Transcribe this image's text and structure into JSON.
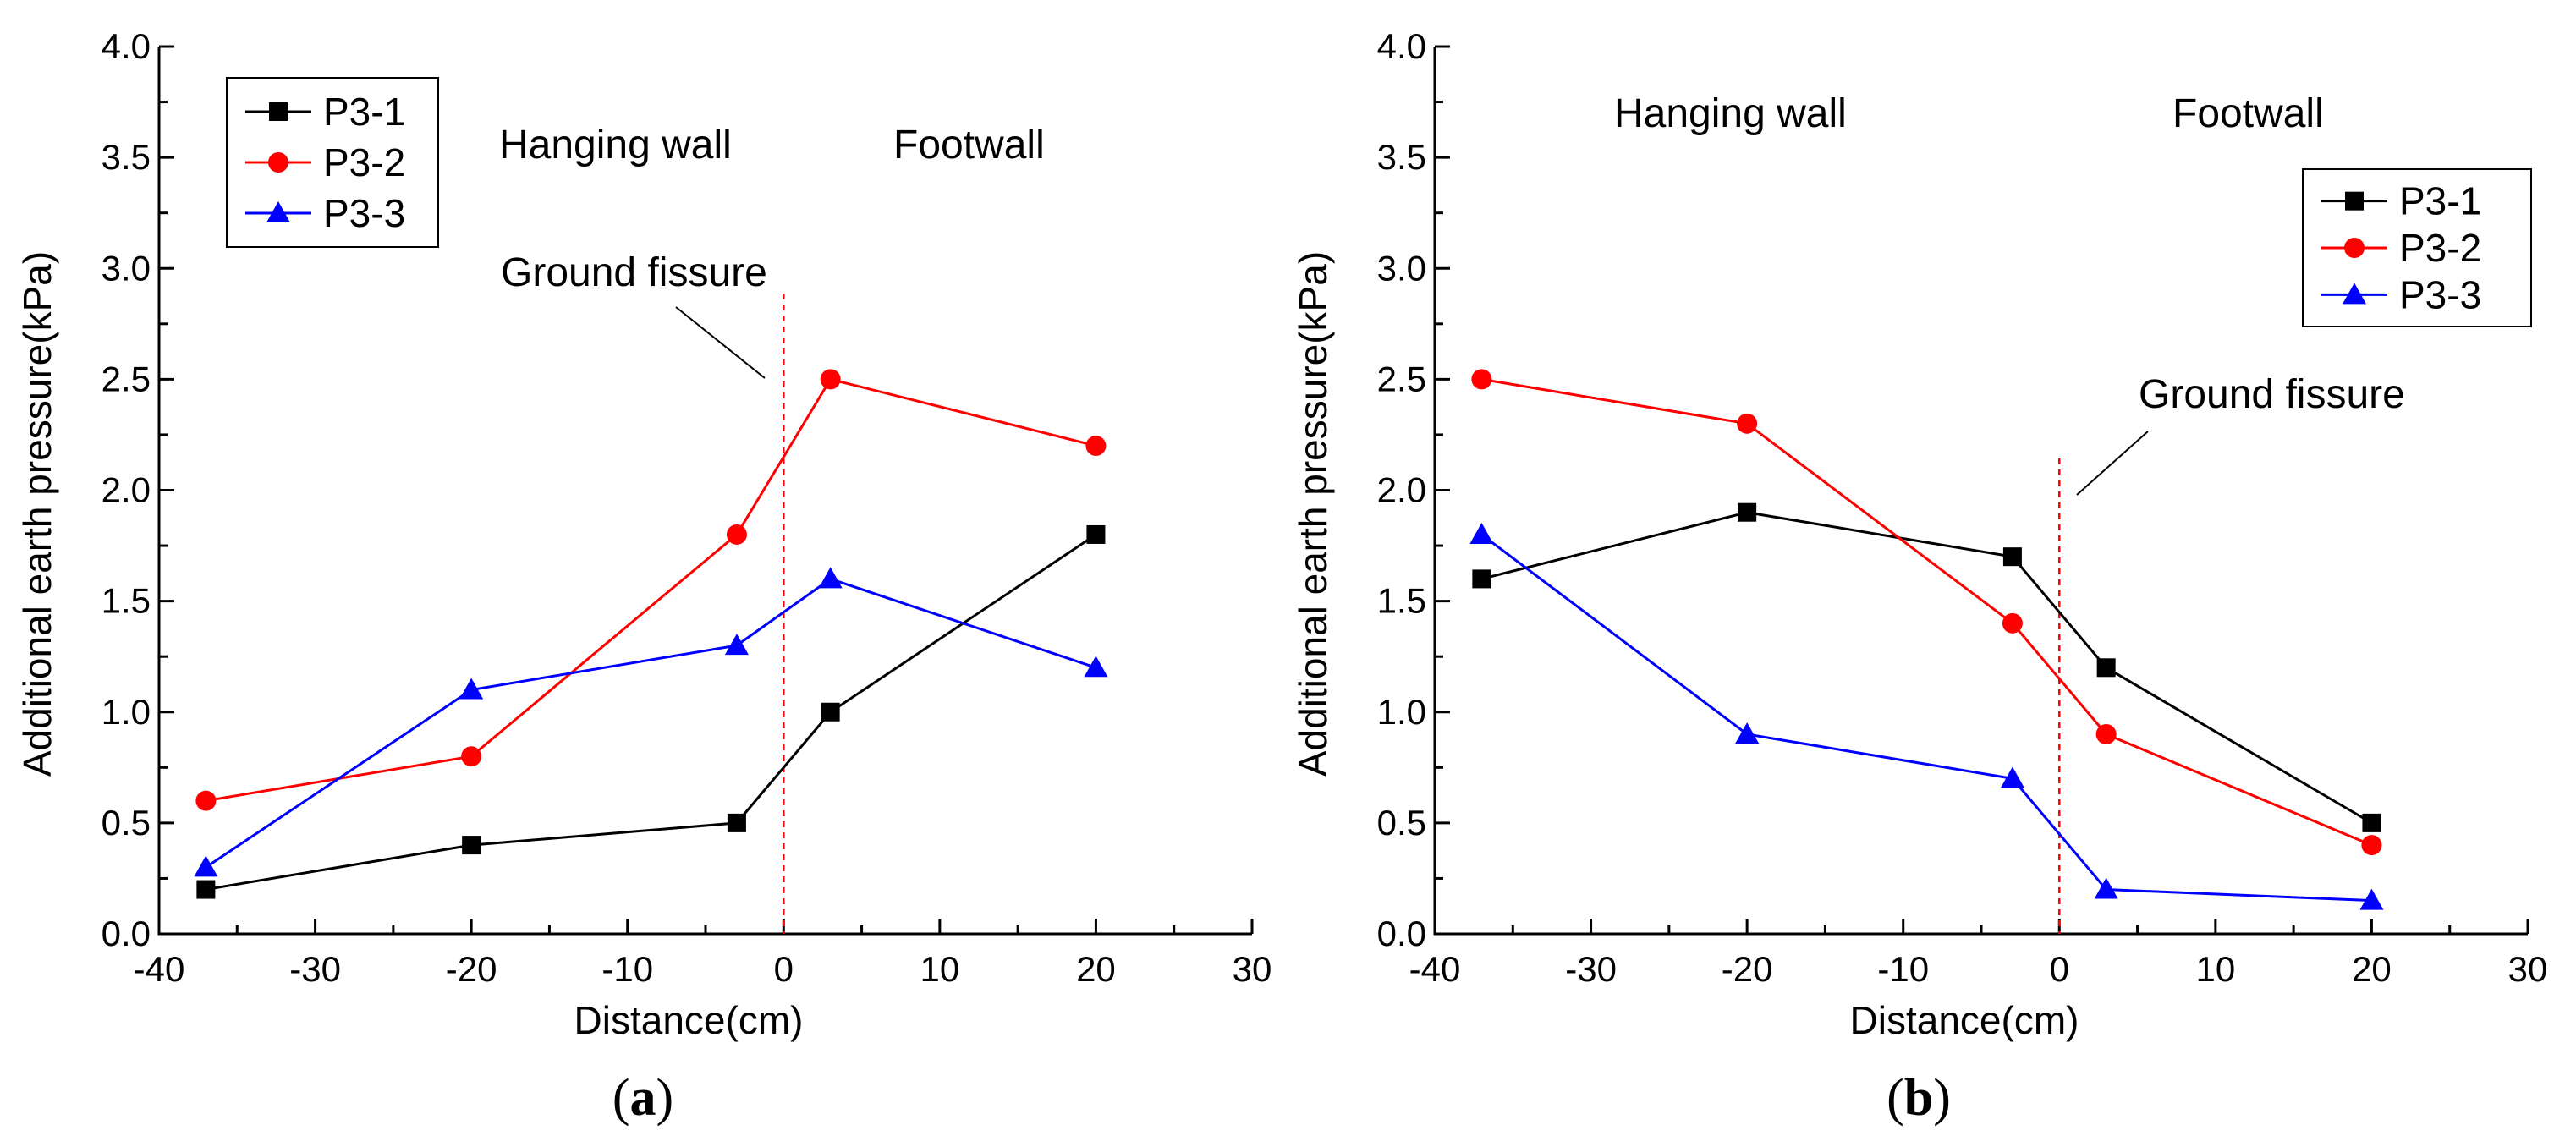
{
  "chart_data": [
    {
      "type": "line",
      "panel_label": "a",
      "xlabel": "Distance(cm)",
      "ylabel": "Additional earth pressure(kPa)",
      "xlim": [
        -40,
        30
      ],
      "ylim": [
        0,
        4.0
      ],
      "xticks": [
        "-40",
        "-30",
        "-20",
        "-10",
        "0",
        "10",
        "20",
        "30"
      ],
      "yticks": [
        "0.0",
        "0.5",
        "1.0",
        "1.5",
        "2.0",
        "2.5",
        "3.0",
        "3.5",
        "4.0"
      ],
      "legend_position": "top-left",
      "annotations": {
        "left_zone": "Hanging wall",
        "right_zone": "Footwall",
        "fissure": "Ground fissure"
      },
      "fissure_x": 0,
      "series": [
        {
          "name": "P3-1",
          "color": "#000000",
          "marker": "square",
          "x": [
            -37,
            -20,
            -3,
            3,
            20
          ],
          "y": [
            0.2,
            0.4,
            0.5,
            1.0,
            1.8
          ]
        },
        {
          "name": "P3-2",
          "color": "#ff0000",
          "marker": "circle",
          "x": [
            -37,
            -20,
            -3,
            3,
            20
          ],
          "y": [
            0.6,
            0.8,
            1.8,
            2.5,
            2.2
          ]
        },
        {
          "name": "P3-3",
          "color": "#0000ff",
          "marker": "triangle",
          "x": [
            -37,
            -20,
            -3,
            3,
            20
          ],
          "y": [
            0.3,
            1.1,
            1.3,
            1.6,
            1.2
          ]
        }
      ]
    },
    {
      "type": "line",
      "panel_label": "b",
      "xlabel": "Distance(cm)",
      "ylabel": "Additional earth pressure(kPa)",
      "xlim": [
        -40,
        30
      ],
      "ylim": [
        0,
        4.0
      ],
      "xticks": [
        "-40",
        "-30",
        "-20",
        "-10",
        "0",
        "10",
        "20",
        "30"
      ],
      "yticks": [
        "0.0",
        "0.5",
        "1.0",
        "1.5",
        "2.0",
        "2.5",
        "3.0",
        "3.5",
        "4.0"
      ],
      "legend_position": "top-right",
      "annotations": {
        "left_zone": "Hanging wall",
        "right_zone": "Footwall",
        "fissure": "Ground fissure"
      },
      "fissure_x": 0,
      "series": [
        {
          "name": "P3-1",
          "color": "#000000",
          "marker": "square",
          "x": [
            -37,
            -20,
            -3,
            3,
            20
          ],
          "y": [
            1.6,
            1.9,
            1.7,
            1.2,
            0.5
          ]
        },
        {
          "name": "P3-2",
          "color": "#ff0000",
          "marker": "circle",
          "x": [
            -37,
            -20,
            -3,
            3,
            20
          ],
          "y": [
            2.5,
            2.3,
            1.4,
            0.9,
            0.4
          ]
        },
        {
          "name": "P3-3",
          "color": "#0000ff",
          "marker": "triangle",
          "x": [
            -37,
            -20,
            -3,
            3,
            20
          ],
          "y": [
            1.8,
            0.9,
            0.7,
            0.2,
            0.15
          ]
        }
      ]
    }
  ]
}
